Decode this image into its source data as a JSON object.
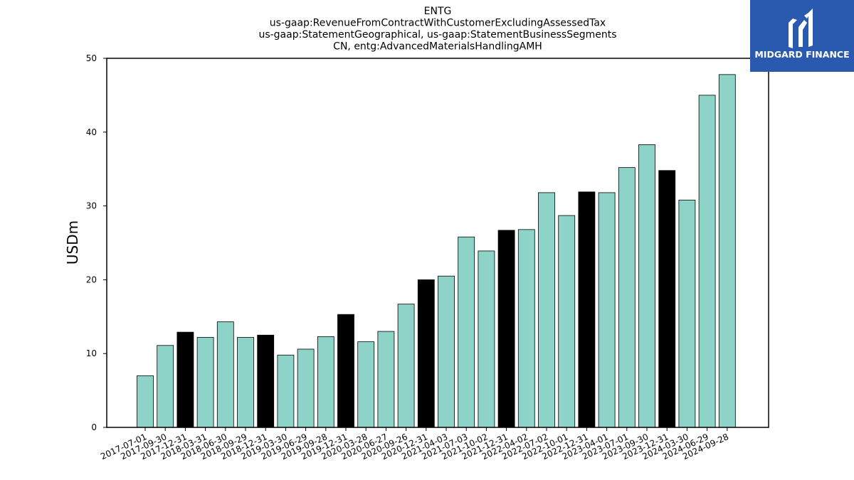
{
  "brand": {
    "name": "MIDGARD FINANCE",
    "colors": {
      "background": "#2a5aaf",
      "text": "#ffffff"
    }
  },
  "chart_data": {
    "type": "bar",
    "title_lines": [
      "ENTG",
      "us-gaap:RevenueFromContractWithCustomerExcludingAssessedTax",
      "us-gaap:StatementGeographical, us-gaap:StatementBusinessSegments",
      "CN, entg:AdvancedMaterialsHandlingAMH"
    ],
    "xlabel": "",
    "ylabel": "USDm",
    "ylim": [
      0,
      50
    ],
    "yticks": [
      0,
      10,
      20,
      30,
      40,
      50
    ],
    "grid": false,
    "colors": {
      "quarter": "#8dd3c7",
      "year_end": "#000000",
      "edge": "#000000"
    },
    "categories": [
      "2017-07-01",
      "2017-09-30",
      "2017-12-31",
      "2018-03-31",
      "2018-06-30",
      "2018-09-29",
      "2018-12-31",
      "2019-03-30",
      "2019-06-29",
      "2019-09-28",
      "2019-12-31",
      "2020-03-28",
      "2020-06-27",
      "2020-09-26",
      "2020-12-31",
      "2021-04-03",
      "2021-07-03",
      "2021-10-02",
      "2021-12-31",
      "2022-04-02",
      "2022-07-02",
      "2022-10-01",
      "2022-12-31",
      "2023-04-01",
      "2023-07-01",
      "2023-09-30",
      "2023-12-31",
      "2024-03-30",
      "2024-06-29",
      "2024-09-28"
    ],
    "values": [
      7.0,
      11.1,
      12.9,
      12.2,
      14.3,
      12.2,
      12.5,
      9.8,
      10.6,
      12.3,
      15.3,
      11.6,
      13.0,
      16.7,
      20.0,
      20.5,
      25.8,
      23.9,
      26.7,
      26.8,
      31.8,
      28.7,
      31.9,
      31.8,
      35.2,
      38.3,
      34.8,
      30.8,
      45.0,
      47.8
    ],
    "year_end": [
      false,
      false,
      true,
      false,
      false,
      false,
      true,
      false,
      false,
      false,
      true,
      false,
      false,
      false,
      true,
      false,
      false,
      false,
      true,
      false,
      false,
      false,
      true,
      false,
      false,
      false,
      true,
      false,
      false,
      false
    ]
  }
}
